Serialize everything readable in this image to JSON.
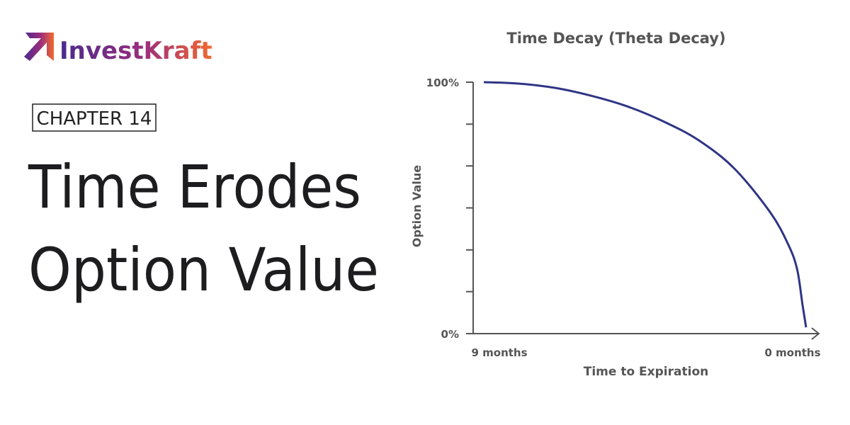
{
  "header": {
    "brand": "InvestKraft",
    "chapter": "CHAPTER 14",
    "headline": [
      "Time Erodes",
      "Option Value"
    ]
  },
  "chart_data": {
    "type": "line",
    "title": "Time Decay (Theta Decay)",
    "x_label": "Time to Expiration",
    "y_label": "Option Value",
    "x": [
      9,
      8,
      7,
      6,
      5,
      4,
      3,
      2,
      1,
      0.5,
      0.25,
      0.1,
      0
    ],
    "series": [
      {
        "name": "Option Value",
        "color": "#2e3585",
        "values": [
          100,
          99.4,
          97.7,
          94.6,
          90.4,
          84.5,
          76.9,
          65.6,
          48.2,
          35.5,
          25.6,
          11.5,
          2.5
        ]
      }
    ],
    "xlim": [
      9,
      0
    ],
    "ylim": [
      0,
      100
    ],
    "xticks": [
      {
        "value": 9,
        "label": "9 months"
      },
      {
        "value": 0,
        "label": "0 months"
      }
    ],
    "yticks": [
      {
        "value": 0,
        "label": "0%"
      },
      {
        "value": 16.7,
        "label": null
      },
      {
        "value": 33.3,
        "label": null
      },
      {
        "value": 50,
        "label": null
      },
      {
        "value": 66.7,
        "label": null
      },
      {
        "value": 83.3,
        "label": null
      },
      {
        "value": 100,
        "label": "100%"
      }
    ],
    "grid": false
  }
}
